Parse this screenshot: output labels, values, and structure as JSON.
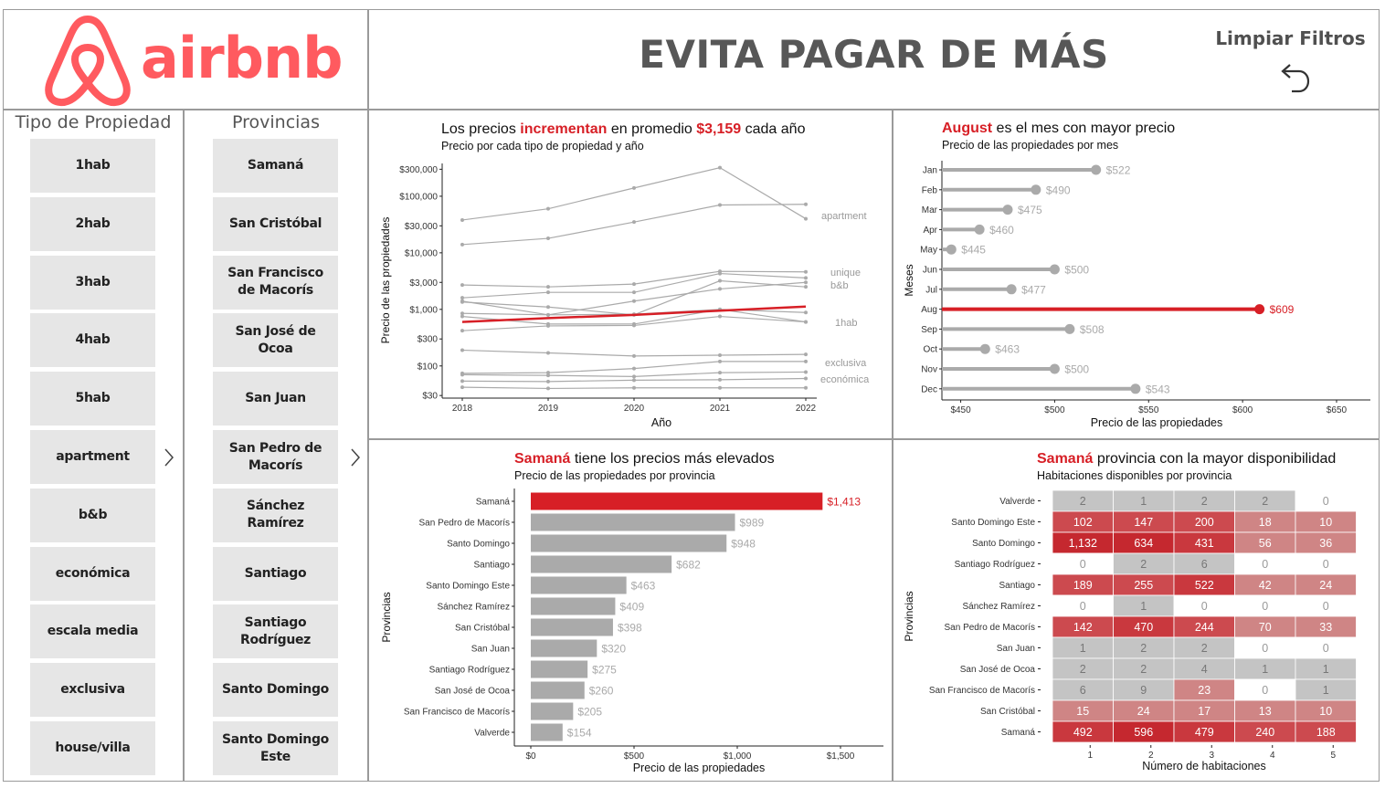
{
  "header": {
    "logo_text": "airbnb",
    "title": "EVITA PAGAR DE MÁS",
    "clear_filters": "Limpiar Filtros"
  },
  "slicers": {
    "property_type": {
      "title": "Tipo de Propiedad",
      "items": [
        "1hab",
        "2hab",
        "3hab",
        "4hab",
        "5hab",
        "apartment",
        "b&b",
        "económica",
        "escala media",
        "exclusiva",
        "house/villa"
      ]
    },
    "provinces": {
      "title": "Provincias",
      "items": [
        "Samaná",
        "San Cristóbal",
        "San Francisco de Macorís",
        "San José de Ocoa",
        "San Juan",
        "San Pedro de Macorís",
        "Sánchez Ramírez",
        "Santiago",
        "Santiago Rodríguez",
        "Santo Domingo",
        "Santo Domingo Este"
      ]
    }
  },
  "chart_data": [
    {
      "type": "line",
      "title_parts": [
        "Los precios ",
        "incrementan",
        " en promedio ",
        "$3,159",
        " cada año"
      ],
      "subtitle": "Precio por cada tipo de propiedad y año",
      "xlabel": "Año",
      "ylabel": "Precio de las propiedades",
      "yscale": "log",
      "x": [
        2018,
        2019,
        2020,
        2021,
        2022
      ],
      "y_ticks": [
        30,
        100,
        300,
        1000,
        3000,
        10000,
        30000,
        100000,
        300000
      ],
      "y_tick_labels": [
        "$30",
        "$100",
        "$300",
        "$1,000",
        "$3,000",
        "$10,000",
        "$30,000",
        "$100,000",
        "$300,000"
      ],
      "series": [
        {
          "values": [
            38000,
            60000,
            140000,
            320000,
            40000
          ]
        },
        {
          "values": [
            14000,
            18000,
            35000,
            70000,
            72000
          ]
        },
        {
          "values": [
            2700,
            2500,
            2800,
            4700,
            4600
          ]
        },
        {
          "values": [
            1600,
            2000,
            2000,
            4300,
            3600
          ]
        },
        {
          "values": [
            1350,
            1100,
            800,
            3200,
            2500
          ]
        },
        {
          "values": [
            1400,
            800,
            1400,
            2300,
            3000
          ]
        },
        {
          "values": [
            850,
            800,
            820,
            1000,
            880
          ]
        },
        {
          "values": [
            750,
            550,
            550,
            1000,
            600
          ]
        },
        {
          "values": [
            420,
            510,
            520,
            750,
            600
          ]
        },
        {
          "values": [
            190,
            170,
            150,
            155,
            160
          ]
        },
        {
          "values": [
            74,
            76,
            90,
            120,
            120
          ]
        },
        {
          "values": [
            70,
            68,
            65,
            76,
            78
          ]
        },
        {
          "values": [
            54,
            53,
            56,
            57,
            60
          ]
        },
        {
          "values": [
            42,
            40,
            41,
            41,
            41
          ]
        },
        {
          "name": "promedio",
          "highlight": true,
          "values": [
            600,
            700,
            800,
            950,
            1120
          ]
        }
      ],
      "labels": [
        "apartment",
        "unique",
        "b&b",
        "1hab",
        "exclusiva",
        "económica"
      ],
      "colors": {
        "highlight": "#d71f26",
        "base": "#aaaaaa"
      }
    },
    {
      "type": "lollipop",
      "title_parts": [
        "August",
        " es el mes con mayor precio"
      ],
      "subtitle": "Precio de las propiedades por mes",
      "xlabel": "Precio de las propiedades",
      "ylabel": "Meses",
      "categories": [
        "Jan",
        "Feb",
        "Mar",
        "Apr",
        "May",
        "Jun",
        "Jul",
        "Aug",
        "Sep",
        "Oct",
        "Nov",
        "Dec"
      ],
      "values": [
        522,
        490,
        475,
        460,
        445,
        500,
        477,
        609,
        508,
        463,
        500,
        543
      ],
      "value_labels": [
        "$522",
        "$490",
        "$475",
        "$460",
        "$445",
        "$500",
        "$477",
        "$609",
        "$508",
        "$463",
        "$500",
        "$543"
      ],
      "highlight": "Aug",
      "x_ticks": [
        450,
        500,
        550,
        600,
        650
      ],
      "x_tick_labels": [
        "$450",
        "$500",
        "$550",
        "$600",
        "$650"
      ]
    },
    {
      "type": "bar",
      "orientation": "horizontal",
      "title_parts": [
        "Samaná",
        " tiene los precios más elevados"
      ],
      "subtitle": "Precio de las propiedades por provincia",
      "xlabel": "Precio de las propiedades",
      "ylabel": "Provincias",
      "categories": [
        "Samaná",
        "San Pedro de Macorís",
        "Santo Domingo",
        "Santiago",
        "Santo Domingo Este",
        "Sánchez Ramírez",
        "San Cristóbal",
        "San Juan",
        "Santiago Rodríguez",
        "San José de Ocoa",
        "San Francisco de Macorís",
        "Valverde"
      ],
      "values": [
        1413,
        989,
        948,
        682,
        463,
        409,
        398,
        320,
        275,
        260,
        205,
        154
      ],
      "value_labels": [
        "$1,413",
        "$989",
        "$948",
        "$682",
        "$463",
        "$409",
        "$398",
        "$320",
        "$275",
        "$260",
        "$205",
        "$154"
      ],
      "highlight": "Samaná",
      "x_ticks": [
        0,
        500,
        1000,
        1500
      ],
      "x_tick_labels": [
        "$0",
        "$500",
        "$1,000",
        "$1,500"
      ]
    },
    {
      "type": "heatmap",
      "title_parts": [
        "Samaná",
        " provincia con la mayor disponibilidad"
      ],
      "subtitle": "Habitaciones disponibles por provincia",
      "xlabel": "Número de habitaciones",
      "ylabel": "Provincias",
      "x": [
        "1",
        "2",
        "3",
        "4",
        "5"
      ],
      "rows": [
        "Valverde",
        "Santo Domingo Este",
        "Santo Domingo",
        "Santiago Rodríguez",
        "Santiago",
        "Sánchez Ramírez",
        "San Pedro de Macorís",
        "San Juan",
        "San José de Ocoa",
        "San Francisco de Macorís",
        "San Cristóbal",
        "Samaná"
      ],
      "values": [
        [
          2,
          1,
          2,
          2,
          0
        ],
        [
          102,
          147,
          200,
          18,
          10
        ],
        [
          1132,
          634,
          431,
          56,
          36
        ],
        [
          0,
          2,
          6,
          0,
          0
        ],
        [
          189,
          255,
          522,
          42,
          24
        ],
        [
          0,
          1,
          0,
          0,
          0
        ],
        [
          142,
          470,
          244,
          70,
          33
        ],
        [
          1,
          2,
          2,
          0,
          0
        ],
        [
          2,
          2,
          4,
          1,
          1
        ],
        [
          6,
          9,
          23,
          0,
          1
        ],
        [
          15,
          24,
          17,
          13,
          10
        ],
        [
          492,
          596,
          479,
          240,
          188
        ]
      ],
      "value_labels": [
        [
          "2",
          "1",
          "2",
          "2",
          "0"
        ],
        [
          "102",
          "147",
          "200",
          "18",
          "10"
        ],
        [
          "1,132",
          "634",
          "431",
          "56",
          "36"
        ],
        [
          "0",
          "2",
          "6",
          "0",
          "0"
        ],
        [
          "189",
          "255",
          "522",
          "42",
          "24"
        ],
        [
          "0",
          "1",
          "0",
          "0",
          "0"
        ],
        [
          "142",
          "470",
          "244",
          "70",
          "33"
        ],
        [
          "1",
          "2",
          "2",
          "0",
          "0"
        ],
        [
          "2",
          "2",
          "4",
          "1",
          "1"
        ],
        [
          "6",
          "9",
          "23",
          "0",
          "1"
        ],
        [
          "15",
          "24",
          "17",
          "13",
          "10"
        ],
        [
          "492",
          "596",
          "479",
          "240",
          "188"
        ]
      ]
    }
  ]
}
